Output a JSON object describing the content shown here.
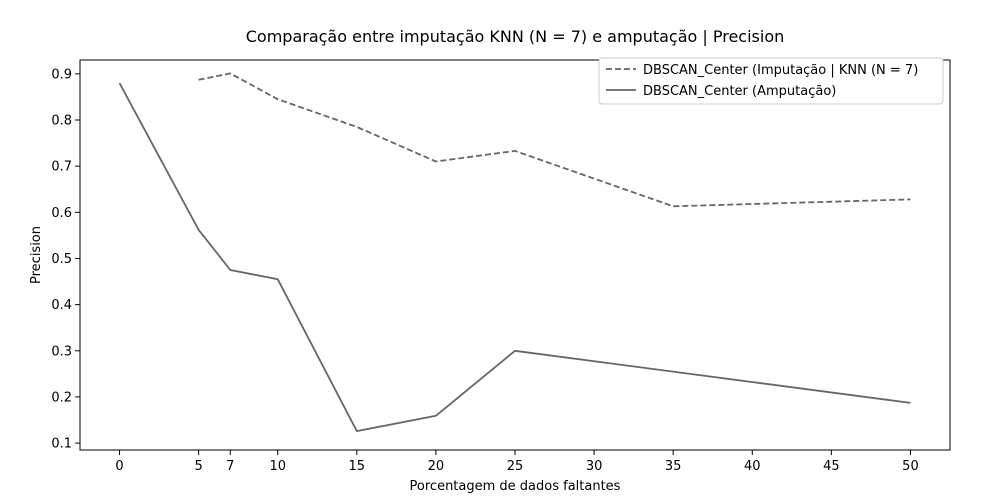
{
  "chart_data": {
    "type": "line",
    "title": "Comparação entre imputação KNN (N = 7) e amputação | Precision",
    "xlabel": "Porcentagem de dados faltantes",
    "ylabel": "Precision",
    "xlim": [
      -2.5,
      52.5
    ],
    "ylim": [
      0.085,
      0.93
    ],
    "x_ticks": [
      0,
      5,
      7,
      10,
      15,
      20,
      25,
      30,
      35,
      40,
      45,
      50
    ],
    "y_ticks": [
      0.1,
      0.2,
      0.3,
      0.4,
      0.5,
      0.6,
      0.7,
      0.8,
      0.9
    ],
    "grid": false,
    "legend_position": "top-right",
    "line_color": "#666666",
    "series": [
      {
        "name": "DBSCAN_Center (Imputação | KNN (N = 7)",
        "style": "dashed",
        "x": [
          5,
          7,
          10,
          15,
          20,
          25,
          35,
          50
        ],
        "values": [
          0.887,
          0.901,
          0.845,
          0.785,
          0.71,
          0.733,
          0.613,
          0.628
        ]
      },
      {
        "name": "DBSCAN_Center (Amputação)",
        "style": "solid",
        "x": [
          0,
          5,
          7,
          10,
          15,
          20,
          25,
          50
        ],
        "values": [
          0.88,
          0.562,
          0.475,
          0.455,
          0.126,
          0.159,
          0.3,
          0.187
        ]
      }
    ]
  }
}
